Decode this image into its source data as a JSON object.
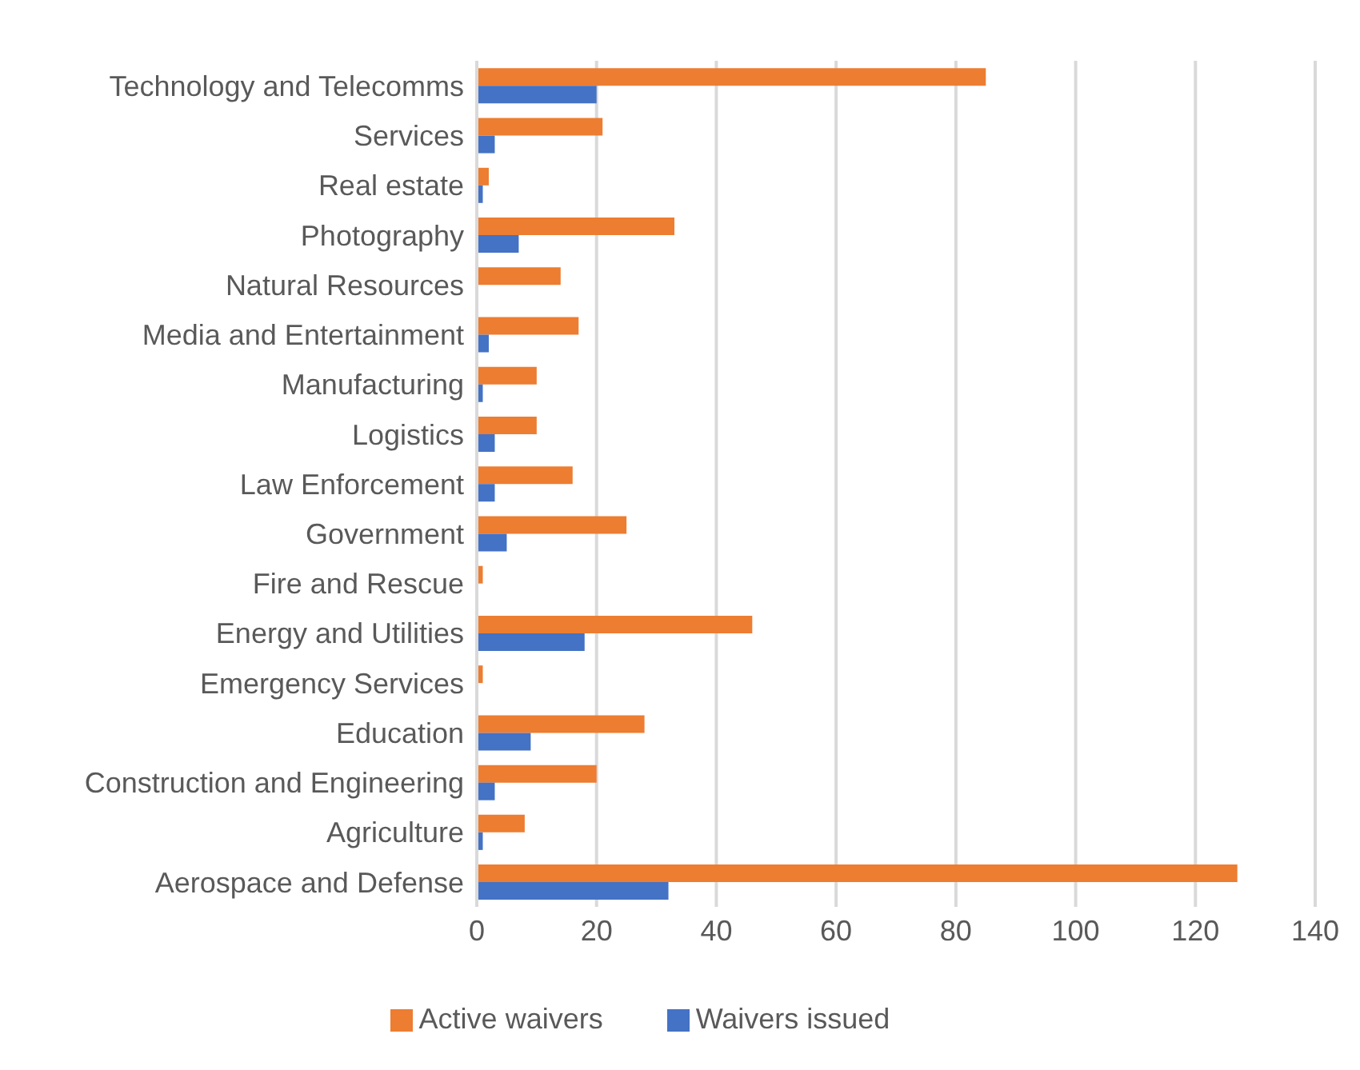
{
  "chart_data": {
    "type": "bar",
    "orientation": "horizontal",
    "categories": [
      "Technology and Telecomms",
      "Services",
      "Real estate",
      "Photography",
      "Natural Resources",
      "Media and Entertainment",
      "Manufacturing",
      "Logistics",
      "Law Enforcement",
      "Government",
      "Fire and Rescue",
      "Energy and Utilities",
      "Emergency Services",
      "Education",
      "Construction and Engineering",
      "Agriculture",
      "Aerospace and Defense"
    ],
    "series": [
      {
        "name": "Active waivers",
        "color": "#ed7d31",
        "values": [
          85,
          21,
          2,
          33,
          14,
          17,
          10,
          10,
          16,
          25,
          1,
          46,
          1,
          28,
          20,
          8,
          127
        ]
      },
      {
        "name": "Waivers issued",
        "color": "#4472c4",
        "values": [
          20,
          3,
          1,
          7,
          0,
          2,
          1,
          3,
          3,
          5,
          0,
          18,
          0,
          9,
          3,
          1,
          32
        ]
      }
    ],
    "xlim": [
      0,
      140
    ],
    "xticks": [
      0,
      20,
      40,
      60,
      80,
      100,
      120,
      140
    ],
    "grid": "x",
    "legend": "bottom"
  }
}
